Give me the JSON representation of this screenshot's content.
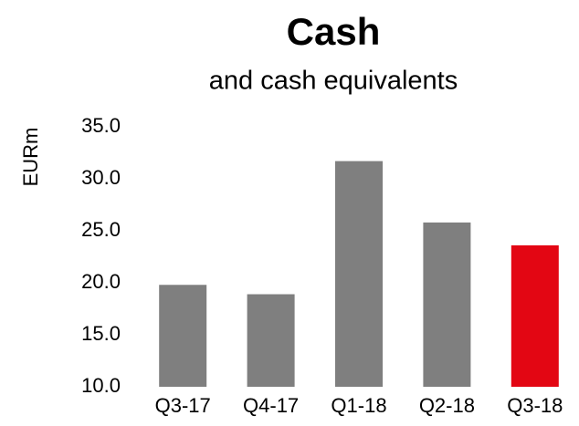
{
  "chart_data": {
    "type": "bar",
    "title": "Cash",
    "subtitle": "and cash equivalents",
    "y_label": "EURm",
    "categories": [
      "Q3-17",
      "Q4-17",
      "Q1-18",
      "Q2-18",
      "Q3-18"
    ],
    "values": [
      19.8,
      18.9,
      31.7,
      25.8,
      23.6
    ],
    "colors": [
      "#7f7f7f",
      "#7f7f7f",
      "#7f7f7f",
      "#7f7f7f",
      "#e30613"
    ],
    "ylim": [
      10,
      35
    ],
    "yticks": [
      {
        "value": 10,
        "label": "10.0"
      },
      {
        "value": 15,
        "label": "15.0"
      },
      {
        "value": 20,
        "label": "20.0"
      },
      {
        "value": 25,
        "label": "25.0"
      },
      {
        "value": 30,
        "label": "30.0"
      },
      {
        "value": 35,
        "label": "35.0"
      }
    ],
    "grid": false
  }
}
